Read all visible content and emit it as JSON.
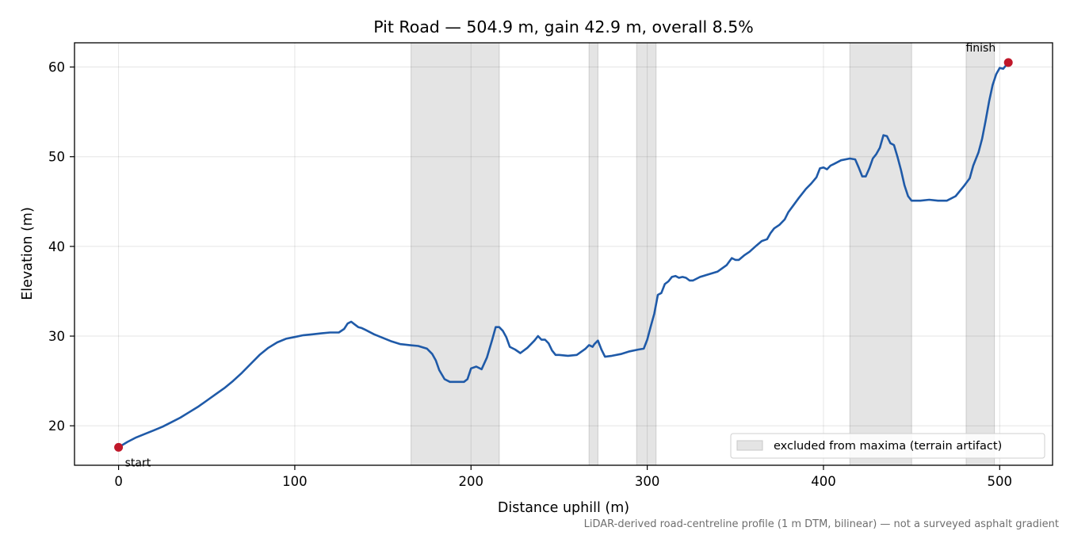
{
  "chart_data": {
    "type": "line",
    "title": "Pit Road — 504.9 m, gain 42.9 m, overall 8.5%",
    "xlabel": "Distance uphill (m)",
    "ylabel": "Elevation (m)",
    "xlim": [
      -25,
      530
    ],
    "ylim": [
      15.6,
      62.7
    ],
    "xticks": [
      0,
      100,
      200,
      300,
      400,
      500
    ],
    "yticks": [
      20,
      30,
      40,
      50,
      60
    ],
    "grid": true,
    "legend_position": "lower-right",
    "line_color": "#1f5aa8",
    "marker_color": "#c0182a",
    "excluded_color": "#e4e4e4",
    "excluded_label": "excluded from maxima (terrain artifact)",
    "excluded_ranges": [
      [
        166,
        216
      ],
      [
        267,
        272
      ],
      [
        294,
        305
      ],
      [
        415,
        450
      ],
      [
        481,
        497
      ]
    ],
    "series": [
      {
        "x": [
          0,
          5,
          10,
          15,
          20,
          25,
          30,
          35,
          40,
          45,
          50,
          55,
          60,
          65,
          70,
          75,
          80,
          85,
          90,
          95,
          100,
          105,
          110,
          115,
          120,
          125,
          128,
          130,
          132,
          134,
          136,
          138,
          140,
          145,
          150,
          155,
          160,
          165,
          170,
          175,
          178,
          180,
          182,
          185,
          188,
          190,
          193,
          196,
          198,
          200,
          203,
          206,
          209,
          212,
          214,
          216,
          218,
          220,
          222,
          225,
          228,
          232,
          236,
          238,
          240,
          242,
          244,
          246,
          248,
          250,
          255,
          260,
          265,
          267,
          269,
          270,
          272,
          274,
          276,
          280,
          285,
          290,
          295,
          298,
          300,
          302,
          304,
          306,
          308,
          310,
          312,
          314,
          316,
          318,
          320,
          322,
          324,
          326,
          330,
          335,
          340,
          345,
          348,
          350,
          352,
          355,
          358,
          362,
          365,
          368,
          370,
          372,
          375,
          378,
          380,
          383,
          386,
          390,
          393,
          396,
          398,
          400,
          402,
          404,
          406,
          410,
          415,
          418,
          420,
          422,
          424,
          426,
          428,
          430,
          432,
          434,
          436,
          438,
          440,
          442,
          444,
          446,
          448,
          450,
          455,
          460,
          465,
          470,
          475,
          480,
          483,
          485,
          488,
          490,
          492,
          494,
          496,
          498,
          500,
          502,
          504.9
        ],
        "y": [
          17.6,
          18.2,
          18.7,
          19.1,
          19.5,
          19.9,
          20.4,
          20.9,
          21.5,
          22.1,
          22.8,
          23.5,
          24.2,
          25.0,
          25.9,
          26.9,
          27.9,
          28.7,
          29.3,
          29.7,
          29.9,
          30.1,
          30.2,
          30.3,
          30.4,
          30.4,
          30.8,
          31.4,
          31.6,
          31.3,
          31.0,
          30.9,
          30.7,
          30.2,
          29.8,
          29.4,
          29.1,
          29.0,
          28.9,
          28.6,
          28.0,
          27.3,
          26.2,
          25.2,
          24.9,
          24.9,
          24.9,
          24.9,
          25.2,
          26.4,
          26.6,
          26.3,
          27.6,
          29.6,
          31.0,
          31.0,
          30.6,
          29.9,
          28.8,
          28.5,
          28.1,
          28.7,
          29.5,
          30.0,
          29.6,
          29.6,
          29.2,
          28.4,
          27.9,
          27.9,
          27.8,
          27.9,
          28.6,
          29.0,
          28.8,
          29.1,
          29.5,
          28.5,
          27.7,
          27.8,
          28.0,
          28.3,
          28.5,
          28.6,
          29.6,
          31.1,
          32.5,
          34.6,
          34.8,
          35.8,
          36.1,
          36.6,
          36.7,
          36.5,
          36.6,
          36.5,
          36.2,
          36.2,
          36.6,
          36.9,
          37.2,
          37.9,
          38.7,
          38.5,
          38.5,
          39.0,
          39.4,
          40.1,
          40.6,
          40.8,
          41.5,
          42.0,
          42.4,
          43.0,
          43.8,
          44.6,
          45.4,
          46.4,
          47.0,
          47.7,
          48.7,
          48.8,
          48.6,
          49.0,
          49.2,
          49.6,
          49.8,
          49.7,
          48.8,
          47.8,
          47.8,
          48.7,
          49.8,
          50.3,
          51.0,
          52.4,
          52.3,
          51.5,
          51.3,
          50.0,
          48.5,
          46.8,
          45.6,
          45.1,
          45.1,
          45.2,
          45.1,
          45.1,
          45.6,
          46.8,
          47.6,
          49.0,
          50.5,
          52.0,
          54.0,
          56.2,
          58.0,
          59.2,
          59.9,
          59.8,
          60.5
        ]
      }
    ],
    "annotations": [
      {
        "label": "start",
        "x": 0,
        "y": 17.6
      },
      {
        "label": "finish",
        "x": 504.9,
        "y": 60.5
      }
    ],
    "footnote": "LiDAR-derived road-centreline profile (1 m DTM, bilinear) — not a surveyed asphalt gradient"
  }
}
